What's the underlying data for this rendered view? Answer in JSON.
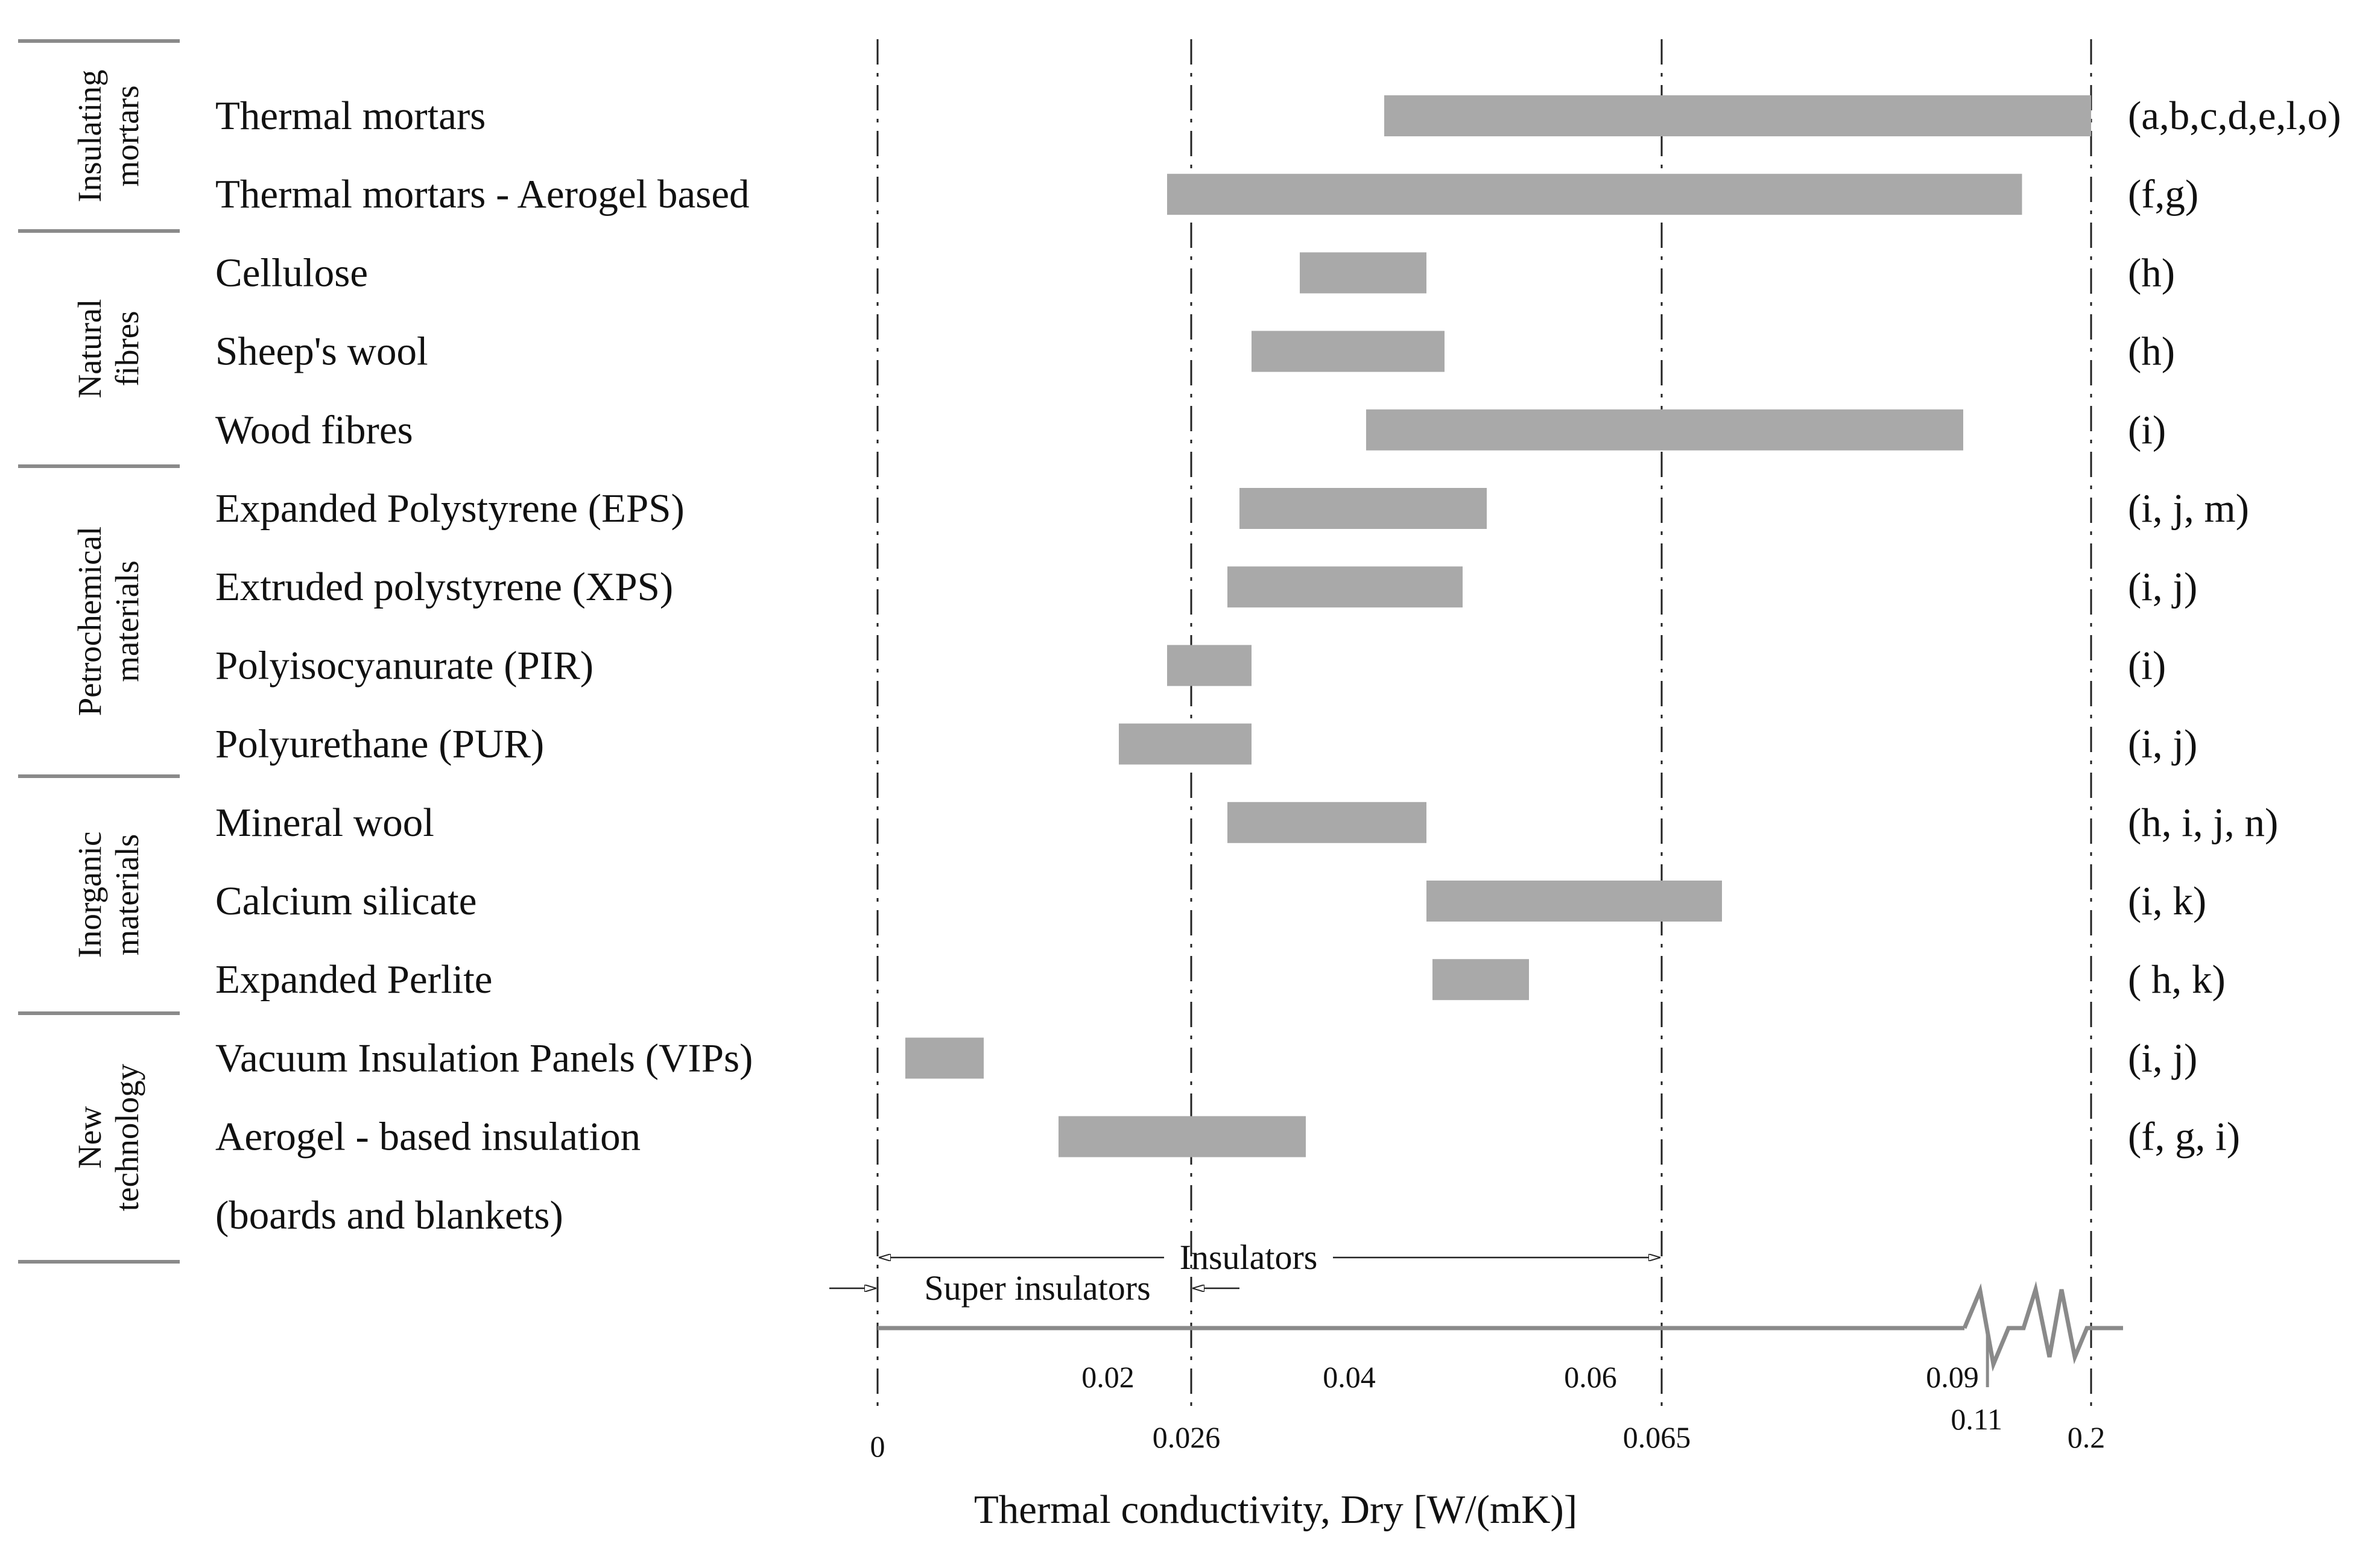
{
  "chart_data": {
    "type": "bar",
    "orientation": "horizontal-range",
    "title": "",
    "xlabel": "Thermal conductivity, Dry [W/(mK)]",
    "ylabel": "",
    "axis_break": "between 0.09 and 0.2",
    "reference_lines": [
      {
        "value": 0,
        "label": "0",
        "style": "dash-dot"
      },
      {
        "value": 0.026,
        "label": "0.026",
        "style": "dash-dot"
      },
      {
        "value": 0.065,
        "label": "0.065",
        "style": "dash-dot"
      },
      {
        "value": 0.2,
        "label": "0.2",
        "style": "dash-dot"
      }
    ],
    "ticks_upper": [
      {
        "value": 0.02,
        "label": "0.02"
      },
      {
        "value": 0.04,
        "label": "0.04"
      },
      {
        "value": 0.06,
        "label": "0.06"
      },
      {
        "value": 0.09,
        "label": "0.09"
      }
    ],
    "ticks_lower": [
      {
        "value": 0,
        "label": "0"
      },
      {
        "value": 0.026,
        "label": "0.026"
      },
      {
        "value": 0.065,
        "label": "0.065"
      },
      {
        "value": 0.11,
        "label": "0.11"
      },
      {
        "value": 0.2,
        "label": "0.2"
      }
    ],
    "zones": [
      {
        "label": "Super insulators",
        "from": 0,
        "to": 0.026
      },
      {
        "label": "Insulators",
        "from": 0,
        "to": 0.065
      }
    ],
    "groups": [
      {
        "label_lines": [
          "Insulating",
          "mortars"
        ],
        "rows": [
          0,
          1
        ]
      },
      {
        "label_lines": [
          "Natural",
          "fibres"
        ],
        "rows": [
          2,
          4
        ]
      },
      {
        "label_lines": [
          "Petrochemical",
          "materials"
        ],
        "rows": [
          5,
          8
        ]
      },
      {
        "label_lines": [
          "Inorganic",
          "materials"
        ],
        "rows": [
          9,
          11
        ]
      },
      {
        "label_lines": [
          "New",
          "technology"
        ],
        "rows": [
          12,
          14
        ]
      }
    ],
    "categories": [
      {
        "label": "Thermal mortars",
        "min": 0.042,
        "max": 0.2,
        "ref": "(a,b,c,d,e,l,o)"
      },
      {
        "label": "Thermal mortars - Aerogel based",
        "min": 0.024,
        "max": 0.14,
        "ref": "(f,g)"
      },
      {
        "label": "Cellulose",
        "min": 0.035,
        "max": 0.0455,
        "ref": "(h)"
      },
      {
        "label": "Sheep's wool",
        "min": 0.031,
        "max": 0.047,
        "ref": "(h)"
      },
      {
        "label": "Wood fibres",
        "min": 0.0405,
        "max": 0.09,
        "ref": "(i)"
      },
      {
        "label": "Expanded Polystyrene (EPS)",
        "min": 0.03,
        "max": 0.0505,
        "ref": "(i, j, m)"
      },
      {
        "label": "Extruded polystyrene (XPS)",
        "min": 0.029,
        "max": 0.0485,
        "ref": "(i, j)"
      },
      {
        "label": "Polyisocyanurate (PIR)",
        "min": 0.024,
        "max": 0.031,
        "ref": "(i)"
      },
      {
        "label": "Polyurethane (PUR)",
        "min": 0.02,
        "max": 0.031,
        "ref": "(i, j)"
      },
      {
        "label": "Mineral wool",
        "min": 0.029,
        "max": 0.0455,
        "ref": "(h, i, j, n)"
      },
      {
        "label": "Calcium silicate",
        "min": 0.0455,
        "max": 0.07,
        "ref": "(i, k)"
      },
      {
        "label": "Expanded Perlite",
        "min": 0.046,
        "max": 0.054,
        "ref": "( h, k)"
      },
      {
        "label": "Vacuum Insulation Panels (VIPs)",
        "min": 0.0023,
        "max": 0.0088,
        "ref": "(i, j)"
      },
      {
        "label": "Aerogel - based insulation",
        "min": 0.015,
        "max": 0.0355,
        "ref": "(f, g, i)"
      },
      {
        "label": "(boards and blankets)",
        "min": null,
        "max": null,
        "ref": ""
      }
    ],
    "colors": {
      "bar": "#a9a9a9",
      "axis": "#8a8a8a",
      "lines": "#222222"
    }
  }
}
